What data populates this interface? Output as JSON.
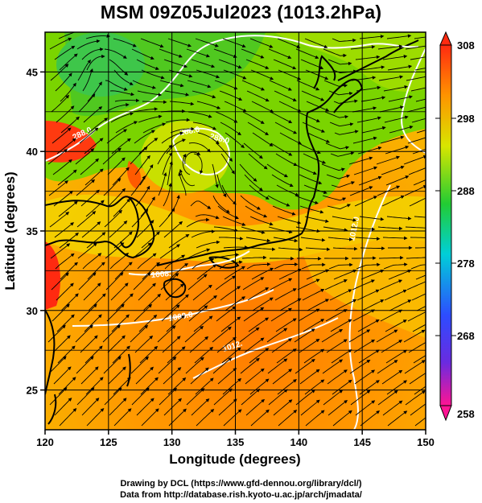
{
  "title": "MSM 09Z05Jul2023 (1013.2hPa)",
  "axes": {
    "xlabel": "Longitude (degrees)",
    "ylabel": "Latitude  (degrees)",
    "xticks": [
      "120",
      "125",
      "130",
      "135",
      "140",
      "145",
      "150"
    ],
    "yticks": [
      "25",
      "30",
      "35",
      "40",
      "45"
    ]
  },
  "colorbar": {
    "max_label": "308",
    "min_label": "258",
    "tick_labels": [
      "298",
      "288",
      "278",
      "268"
    ],
    "colors": [
      "#ff1493",
      "#3355ff",
      "#00d0d0",
      "#22cc22",
      "#e6e600",
      "#ff8c00",
      "#ff2a00"
    ]
  },
  "contour_labels": [
    "288.0",
    "288.0",
    "288.0",
    "1008.",
    "1008.0",
    "1012.",
    "1012.0"
  ],
  "footer": {
    "line1": "Drawing by DCL (https://www.gfd-dennou.org/library/dcl/)",
    "line2": "Data from http://database.rish.kyoto-u.ac.jp/arch/jmadata/"
  },
  "chart_data": {
    "type": "heatmap",
    "variable_colors": {
      "warm": "#ff8c00",
      "mild": "#e6e600",
      "cool": "#22cc22"
    },
    "x_range": [
      120,
      150
    ],
    "y_range": [
      22.5,
      47.5
    ],
    "colorbar_range": [
      258,
      308
    ],
    "overlays": [
      "streamlines",
      "contours",
      "coastlines",
      "grid"
    ]
  }
}
